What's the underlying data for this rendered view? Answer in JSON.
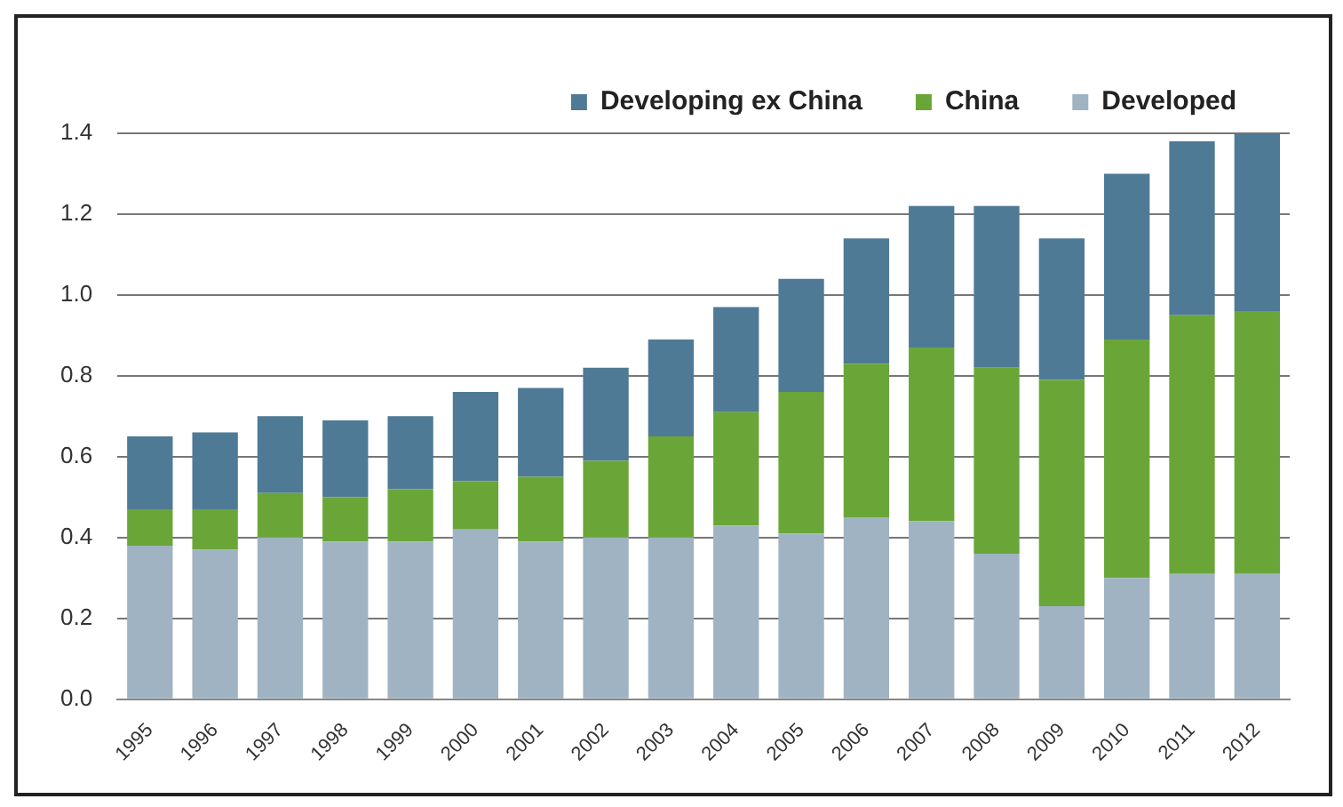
{
  "chart_data": {
    "type": "bar",
    "stacked": true,
    "categories": [
      "1995",
      "1996",
      "1997",
      "1998",
      "1999",
      "2000",
      "2001",
      "2002",
      "2003",
      "2004",
      "2005",
      "2006",
      "2007",
      "2008",
      "2009",
      "2010",
      "2011",
      "2012"
    ],
    "series": [
      {
        "name": "Developed",
        "color": "#9fb3c2",
        "values": [
          0.38,
          0.37,
          0.4,
          0.39,
          0.39,
          0.42,
          0.39,
          0.4,
          0.4,
          0.43,
          0.41,
          0.45,
          0.44,
          0.36,
          0.23,
          0.3,
          0.31,
          0.31
        ]
      },
      {
        "name": "China",
        "color": "#6aa637",
        "values": [
          0.09,
          0.1,
          0.11,
          0.11,
          0.13,
          0.12,
          0.16,
          0.19,
          0.25,
          0.28,
          0.35,
          0.38,
          0.43,
          0.46,
          0.56,
          0.59,
          0.64,
          0.65
        ]
      },
      {
        "name": "Developing ex China",
        "color": "#4f7a96",
        "values": [
          0.18,
          0.19,
          0.19,
          0.19,
          0.18,
          0.22,
          0.22,
          0.23,
          0.24,
          0.26,
          0.28,
          0.31,
          0.35,
          0.4,
          0.35,
          0.41,
          0.43,
          0.44
        ]
      }
    ],
    "ylim": [
      0,
      1.4
    ],
    "yticks": [
      {
        "value": 0,
        "label": "0.0"
      },
      {
        "value": 0.2,
        "label": "0.2"
      },
      {
        "value": 0.4,
        "label": "0.4"
      },
      {
        "value": 0.6,
        "label": "0.6"
      },
      {
        "value": 0.8,
        "label": "0.8"
      },
      {
        "value": 1.0,
        "label": "1.0"
      },
      {
        "value": 1.2,
        "label": "1.2"
      },
      {
        "value": 1.4,
        "label": "1.4"
      }
    ],
    "grid": "y",
    "legend": "top right"
  }
}
